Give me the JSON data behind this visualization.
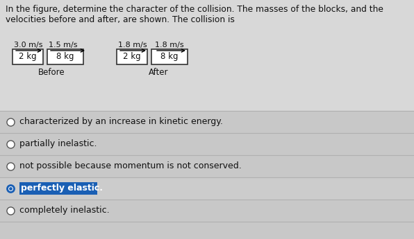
{
  "title_line1": "In the figure, determine the character of the collision. The masses of the blocks, and the",
  "title_line2": "velocities before and after, are shown. The collision is",
  "before_vel1": "3.0 m/s",
  "before_vel2": "1.5 m/s",
  "after_vel1": "1.8 m/s",
  "after_vel2": "1.8 m/s",
  "before_mass1": "2 kg",
  "before_mass2": "8 kg",
  "after_mass1": "2 kg",
  "after_mass2": "8 kg",
  "before_label": "Before",
  "after_label": "After",
  "options": [
    "characterized by an increase in kinetic energy.",
    "partially inelastic.",
    "not possible because momentum is not conserved.",
    "perfectly elastic.",
    "completely inelastic."
  ],
  "selected_index": 3,
  "selected_text": "perfectly elastic.",
  "selected_bg": "#1a5fb4",
  "selected_text_color": "#FFFFFF",
  "bg_color": "#C8C8C8",
  "top_bg": "#D8D8D8",
  "text_color": "#111111",
  "divider_color": "#B0B0B0",
  "radio_edge": "#555555",
  "radio_fill_selected": "#1a5fb4",
  "box_edge": "#333333",
  "box_fill": "#FFFFFF"
}
